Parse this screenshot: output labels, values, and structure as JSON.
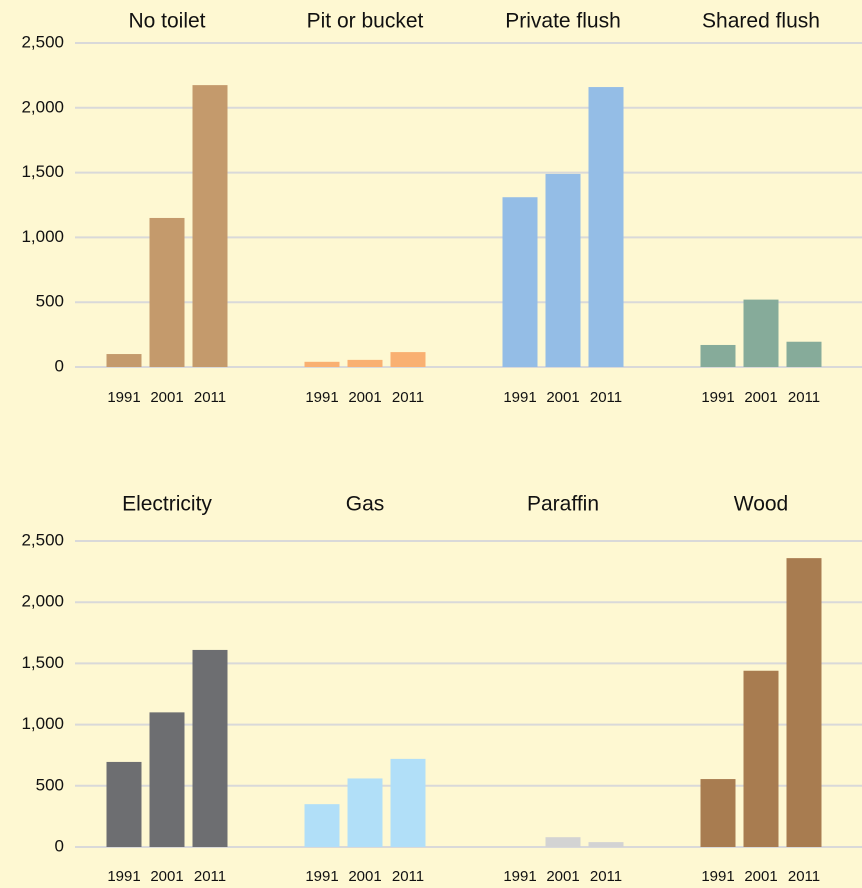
{
  "chart_data": [
    {
      "type": "grouped-bar",
      "years": [
        "1991",
        "2001",
        "2011"
      ],
      "groups": [
        {
          "name": "No toilet",
          "color": "#c49a6c",
          "values": [
            100,
            1150,
            2175
          ]
        },
        {
          "name": "Pit or bucket",
          "color": "#f9b072",
          "values": [
            40,
            55,
            115
          ]
        },
        {
          "name": "Private flush",
          "color": "#94bde6",
          "values": [
            1310,
            1490,
            2160
          ]
        },
        {
          "name": "Shared flush",
          "color": "#86ab9a",
          "values": [
            170,
            520,
            195
          ]
        }
      ],
      "ylim": [
        0,
        2500
      ],
      "yticks": [
        0,
        500,
        {
          "value": 1000,
          "label": "1,000"
        },
        {
          "value": 1500,
          "label": "1,500"
        },
        {
          "value": 2000,
          "label": "2,000"
        },
        {
          "value": 2500,
          "label": "2,500"
        }
      ],
      "grid": true
    },
    {
      "type": "grouped-bar",
      "years": [
        "1991",
        "2001",
        "2011"
      ],
      "groups": [
        {
          "name": "Electricity",
          "color": "#6d6e71",
          "values": [
            695,
            1100,
            1610
          ]
        },
        {
          "name": "Gas",
          "color": "#b1dff8",
          "values": [
            350,
            560,
            720
          ]
        },
        {
          "name": "Paraffin",
          "color": "#d3d3d3",
          "values": [
            0,
            80,
            40
          ]
        },
        {
          "name": "Wood",
          "color": "#a87c50",
          "values": [
            555,
            1440,
            2360
          ]
        }
      ],
      "ylim": [
        0,
        2500
      ],
      "yticks": [
        0,
        500,
        {
          "value": 1000,
          "label": "1,000"
        },
        {
          "value": 1500,
          "label": "1,500"
        },
        {
          "value": 2000,
          "label": "2,000"
        },
        {
          "value": 2500,
          "label": "2,500"
        }
      ],
      "grid": true
    }
  ]
}
